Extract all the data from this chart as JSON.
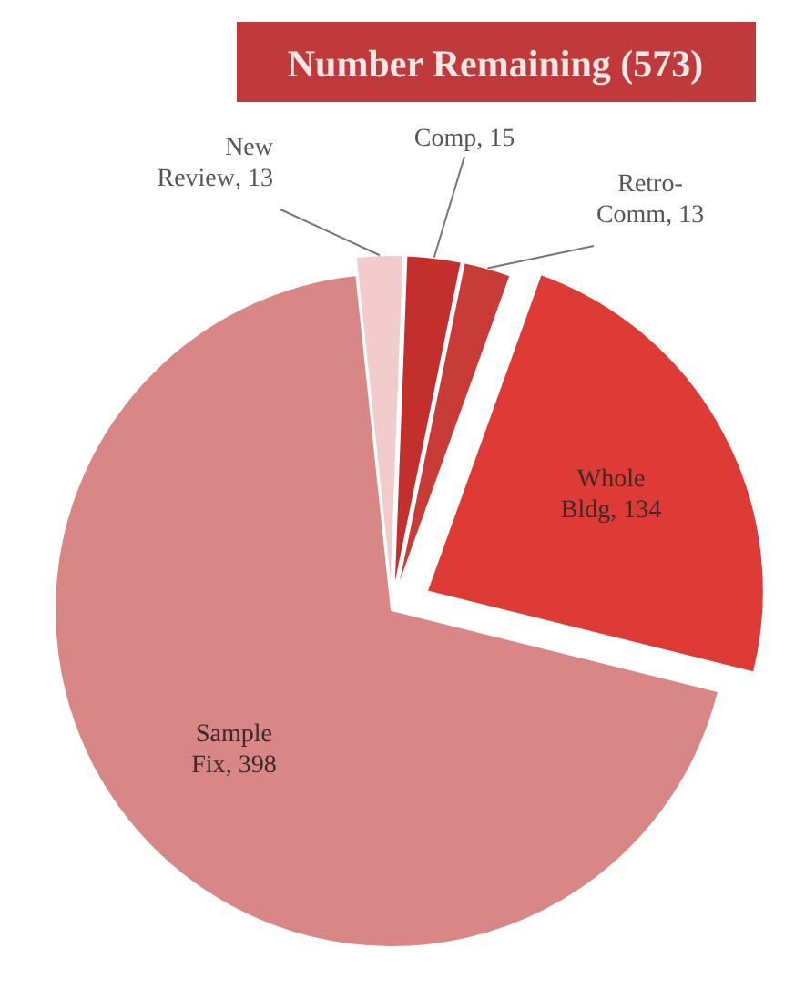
{
  "chart_data": {
    "type": "pie",
    "title": "Number Remaining (573)",
    "categories": [
      "New Review",
      "Comp",
      "Retro-Comm",
      "Whole Bldg",
      "Sample Fix"
    ],
    "values": [
      13,
      15,
      13,
      134,
      398
    ],
    "colors": [
      "#f2cccc",
      "#c22f2c",
      "#c93b37",
      "#df3b36",
      "#d88686"
    ],
    "value_labels": [
      ", 13",
      ", 15",
      ", 13",
      ", 134",
      ", 398"
    ]
  }
}
